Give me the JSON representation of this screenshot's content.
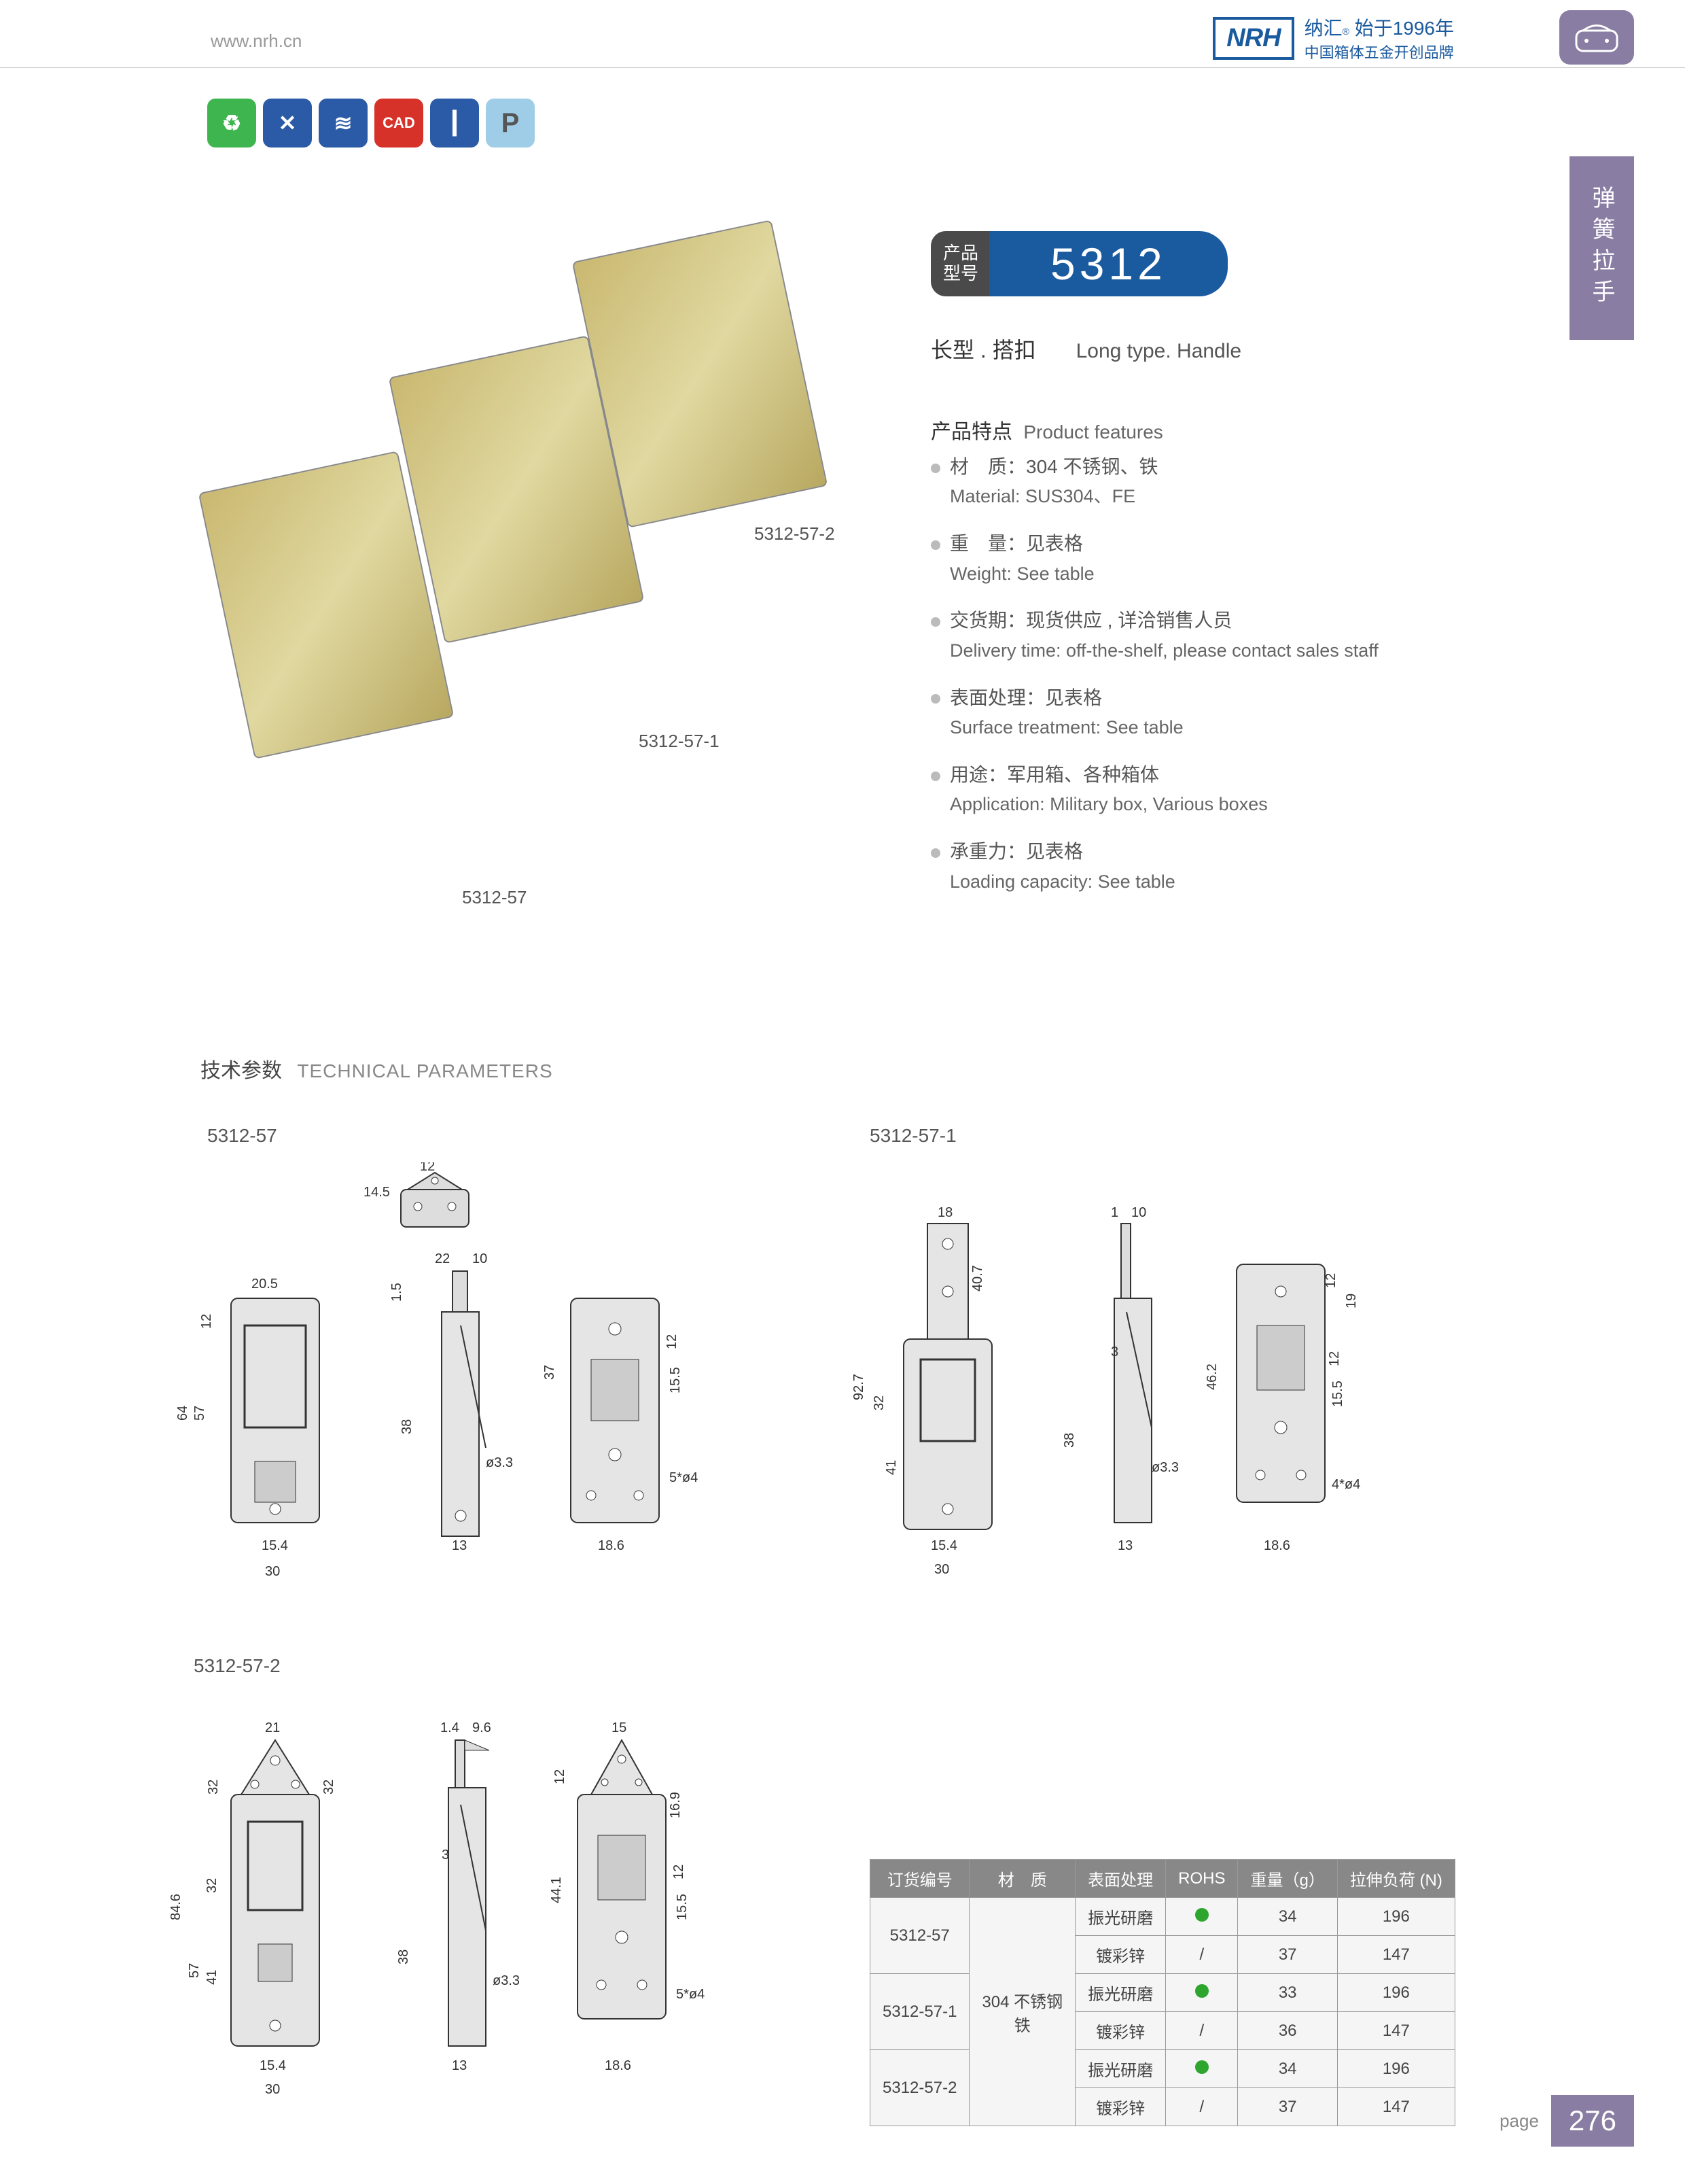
{
  "header": {
    "url": "www.nrh.cn",
    "logo": "NRH",
    "brand_cn": "纳汇",
    "brand_reg": "®",
    "brand_since": "始于1996年",
    "brand_sub": "中国箱体五金开创品牌"
  },
  "side_tab": "弹簧拉手",
  "icons": [
    "eco",
    "tools",
    "spring",
    "CAD",
    "screw",
    "P"
  ],
  "model": {
    "label_cn1": "产品",
    "label_cn2": "型号",
    "number": "5312"
  },
  "subtitle": {
    "cn": "长型 . 搭扣",
    "en": "Long type. Handle"
  },
  "features_head": {
    "cn": "产品特点",
    "en": "Product features"
  },
  "features": [
    {
      "cn": "材　质：304 不锈钢、铁",
      "en": "Material: SUS304、FE"
    },
    {
      "cn": "重　量：见表格",
      "en": "Weight: See table"
    },
    {
      "cn": "交货期：现货供应 , 详洽销售人员",
      "en": "Delivery time: off-the-shelf, please contact sales staff"
    },
    {
      "cn": "表面处理：见表格",
      "en": "Surface treatment:   See table"
    },
    {
      "cn": "用途：军用箱、各种箱体",
      "en": "Application: Military box, Various boxes"
    },
    {
      "cn": "承重力：见表格",
      "en": "Loading capacity: See table"
    }
  ],
  "callouts": {
    "a": "5312-57-2",
    "b": "5312-57-1",
    "c": "5312-57"
  },
  "tech_head": {
    "cn": "技术参数",
    "en": "TECHNICAL PARAMETERS"
  },
  "dwg_labels": {
    "a": "5312-57",
    "b": "5312-57-1",
    "c": "5312-57-2"
  },
  "dims_a": [
    "12",
    "14.5",
    "20.5",
    "12",
    "1.5",
    "22",
    "10",
    "64",
    "57",
    "38",
    "37",
    "12",
    "15.5",
    "ø3.3",
    "5*ø4",
    "15.4",
    "30",
    "13",
    "18.6"
  ],
  "dims_b": [
    "18",
    "1",
    "10",
    "12",
    "40.7",
    "19",
    "92.7",
    "32",
    "3",
    "46.2",
    "12",
    "15.5",
    "41",
    "38",
    "ø3.3",
    "4*ø4",
    "15.4",
    "30",
    "13",
    "18.6"
  ],
  "dims_c": [
    "21",
    "1.4",
    "9.6",
    "15",
    "32",
    "32",
    "12",
    "16.9",
    "84.6",
    "32",
    "3",
    "44.1",
    "12",
    "15.5",
    "57",
    "41",
    "38",
    "ø3.3",
    "5*ø4",
    "15.4",
    "30",
    "13",
    "18.6"
  ],
  "table": {
    "headers": [
      "订货编号",
      "材　质",
      "表面处理",
      "ROHS",
      "重量（g）",
      "拉伸负荷 (N)"
    ],
    "material": "304 不锈钢\n铁",
    "rows": [
      {
        "code": "5312-57",
        "finish": "振光研磨",
        "rohs": "dot",
        "weight": "34",
        "load": "196"
      },
      {
        "code": "",
        "finish": "镀彩锌",
        "rohs": "/",
        "weight": "37",
        "load": "147"
      },
      {
        "code": "5312-57-1",
        "finish": "振光研磨",
        "rohs": "dot",
        "weight": "33",
        "load": "196"
      },
      {
        "code": "",
        "finish": "镀彩锌",
        "rohs": "/",
        "weight": "36",
        "load": "147"
      },
      {
        "code": "5312-57-2",
        "finish": "振光研磨",
        "rohs": "dot",
        "weight": "34",
        "load": "196"
      },
      {
        "code": "",
        "finish": "镀彩锌",
        "rohs": "/",
        "weight": "37",
        "load": "147"
      }
    ]
  },
  "page": {
    "label": "page",
    "num": "276"
  },
  "colors": {
    "brand": "#1a5a9e",
    "accent": "#8a7da3",
    "green": "#2ea52e"
  }
}
